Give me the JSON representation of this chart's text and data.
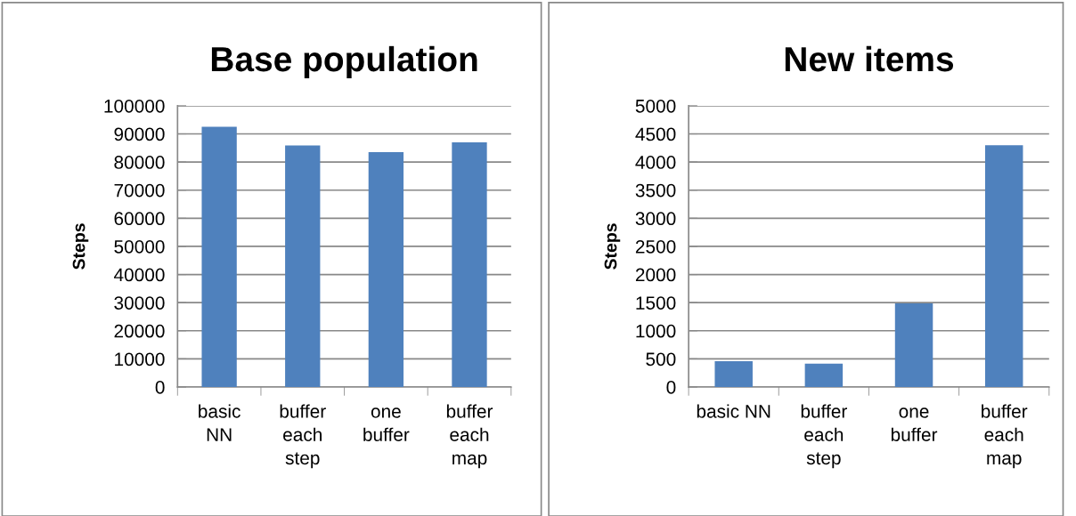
{
  "chart_data": [
    {
      "type": "bar",
      "title": "Base population",
      "ylabel": "Steps",
      "categories": [
        "basic\nNN",
        "buffer\neach\nstep",
        "one\nbuffer",
        "buffer\neach\nmap"
      ],
      "series": [
        {
          "color": "#4f81bd",
          "values": [
            92500,
            85900,
            83500,
            87000
          ]
        }
      ],
      "ylim": [
        0,
        100000
      ],
      "yticks": [
        0,
        10000,
        20000,
        30000,
        40000,
        50000,
        60000,
        70000,
        80000,
        90000,
        100000
      ],
      "grid": "y"
    },
    {
      "type": "bar",
      "title": "New items",
      "ylabel": "Steps",
      "categories": [
        "basic NN",
        "buffer\neach\nstep",
        "one\nbuffer",
        "buffer\neach\nmap"
      ],
      "series": [
        {
          "color": "#4f81bd",
          "values": [
            460,
            417,
            1487,
            4300
          ]
        }
      ],
      "ylim": [
        0,
        5000
      ],
      "yticks": [
        0,
        500,
        1000,
        1500,
        2000,
        2500,
        3000,
        3500,
        4000,
        4500,
        5000
      ],
      "grid": "y"
    }
  ]
}
